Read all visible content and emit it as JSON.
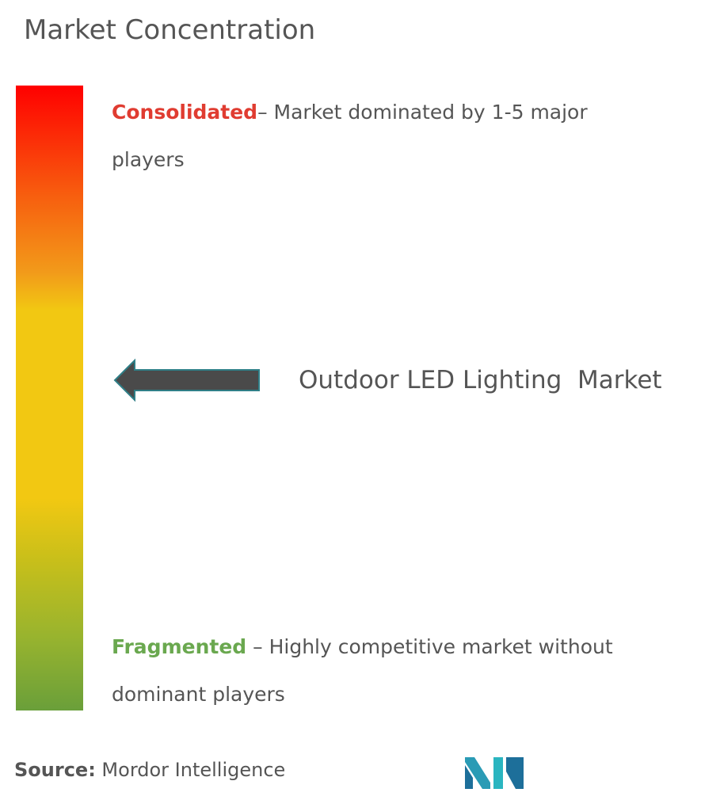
{
  "title": "Market Concentration",
  "consolidated": {
    "label": "Consolidated",
    "description": "– Market dominated by 1-5 major players"
  },
  "market": "Outdoor LED Lighting  Market",
  "fragmented": {
    "label": "Fragmented",
    "description": " – Highly competitive market without dominant players"
  },
  "source": {
    "label": "Source:",
    "value": " Mordor Intelligence"
  }
}
